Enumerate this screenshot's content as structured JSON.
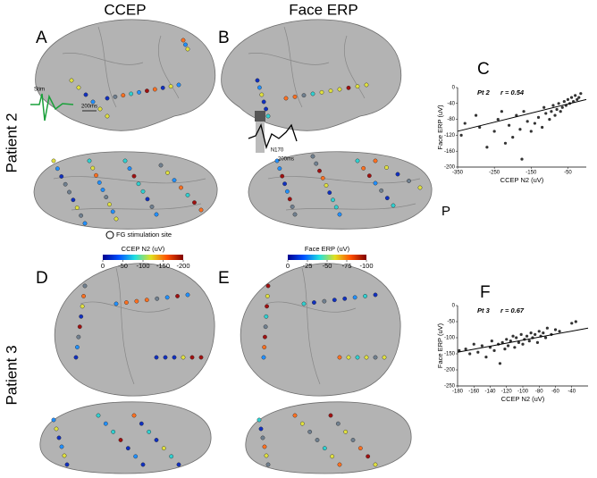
{
  "panels": {
    "column_titles": [
      "CCEP",
      "Face ERP"
    ],
    "row_titles": [
      "Patient 2",
      "Patient 3"
    ],
    "panel_labels": [
      "A",
      "B",
      "C",
      "D",
      "E",
      "F"
    ],
    "annotations": {
      "stim": "Stim",
      "time_scale_a": "200ms",
      "time_scale_b": "200ms",
      "n170": "N170",
      "posterior": "P",
      "fg_site": "FG stimulation site"
    },
    "colorbars": [
      {
        "label": "CCEP N2 (uV)",
        "lim": [
          0,
          -200
        ],
        "ticks": [
          0,
          -50,
          -100,
          -150,
          -200
        ]
      },
      {
        "label": "Face ERP (uV)",
        "lim": [
          0,
          -100
        ],
        "ticks": [
          0,
          -25,
          -50,
          -75,
          -100
        ]
      }
    ]
  },
  "chart_data": [
    {
      "type": "scatter",
      "title": "Pt 2",
      "subtitle": "r = 0.54",
      "x_label": "CCEP N2 (uV)",
      "y_label": "Face ERP (uV)",
      "x": [
        -340,
        -330,
        -300,
        -290,
        -270,
        -250,
        -240,
        -230,
        -220,
        -210,
        -200,
        -190,
        -180,
        -175,
        -170,
        -160,
        -150,
        -140,
        -130,
        -120,
        -115,
        -110,
        -100,
        -95,
        -90,
        -85,
        -80,
        -75,
        -70,
        -65,
        -60,
        -55,
        -50,
        -45,
        -40,
        -35,
        -30,
        -25,
        -20,
        -15
      ],
      "y": [
        -120,
        -90,
        -70,
        -100,
        -150,
        -110,
        -80,
        -60,
        -140,
        -95,
        -125,
        -70,
        -105,
        -180,
        -60,
        -85,
        -110,
        -90,
        -75,
        -100,
        -50,
        -65,
        -80,
        -60,
        -45,
        -70,
        -55,
        -40,
        -60,
        -50,
        -35,
        -45,
        -30,
        -40,
        -25,
        -35,
        -20,
        -30,
        -25,
        -15
      ],
      "color": "#333333",
      "xlim": [
        -350,
        0
      ],
      "xticks": [
        -350,
        -250,
        -150,
        -50
      ],
      "ylim": [
        -200,
        0
      ],
      "yticks": [
        0,
        -40,
        -80,
        -120,
        -160,
        -200
      ],
      "fit_line": {
        "x": [
          -350,
          0
        ],
        "y": [
          -110,
          -30
        ]
      }
    },
    {
      "type": "scatter",
      "title": "Pt 3",
      "subtitle": "r = 0.67",
      "x_label": "CCEP N2 (uV)",
      "y_label": "Face ERP (uV)",
      "x": [
        -178,
        -170,
        -165,
        -160,
        -155,
        -150,
        -145,
        -140,
        -138,
        -135,
        -130,
        -128,
        -125,
        -122,
        -120,
        -118,
        -115,
        -112,
        -110,
        -108,
        -105,
        -102,
        -100,
        -98,
        -95,
        -92,
        -90,
        -88,
        -85,
        -82,
        -80,
        -78,
        -75,
        -72,
        -70,
        -65,
        -60,
        -55,
        -40,
        -35
      ],
      "y": [
        -140,
        -135,
        -150,
        -120,
        -145,
        -125,
        -160,
        -130,
        -110,
        -140,
        -120,
        -180,
        -115,
        -135,
        -105,
        -125,
        -110,
        -95,
        -130,
        -100,
        -115,
        -90,
        -120,
        -105,
        -95,
        -110,
        -85,
        -100,
        -90,
        -115,
        -80,
        -95,
        -85,
        -100,
        -70,
        -90,
        -75,
        -80,
        -55,
        -50
      ],
      "color": "#333333",
      "xlim": [
        -180,
        -20
      ],
      "xticks": [
        -180,
        -160,
        -140,
        -120,
        -100,
        -80,
        -60,
        -40
      ],
      "ylim": [
        -250,
        0
      ],
      "yticks": [
        0,
        -50,
        -100,
        -150,
        -200,
        -250
      ],
      "fit_line": {
        "x": [
          -180,
          -20
        ],
        "y": [
          -145,
          -70
        ]
      }
    }
  ]
}
